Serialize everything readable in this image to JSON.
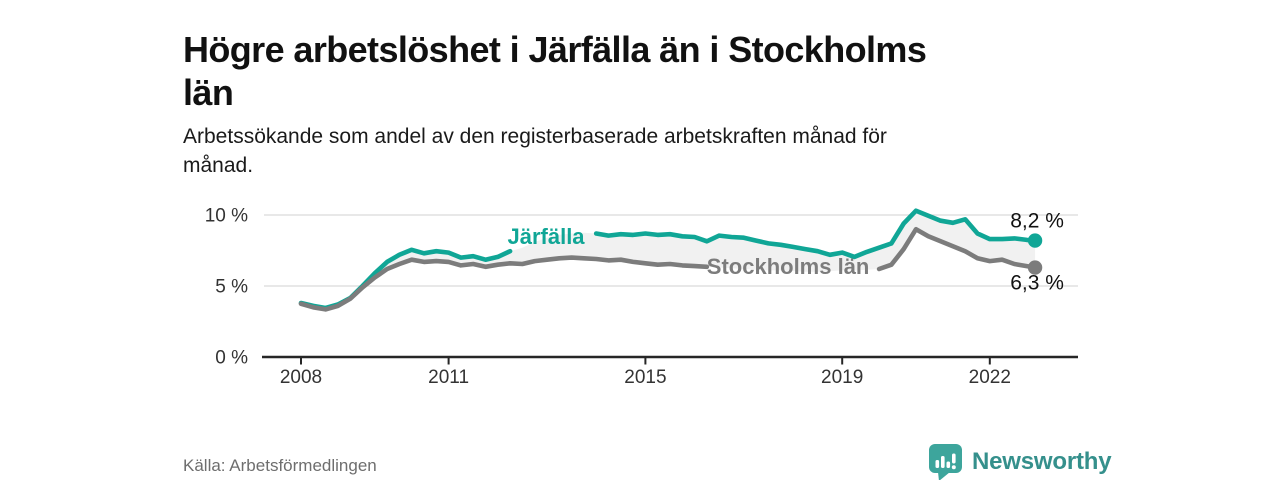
{
  "header": {
    "title_lines": [
      "Högre arbetslöshet i Järfälla än i Stockholms",
      "län"
    ],
    "subtitle_lines": [
      "Arbetssökande som andel av den registerbaserade arbetskraften månad för",
      "månad."
    ]
  },
  "footer": {
    "source": "Källa: Arbetsförmedlingen",
    "brand": "Newsworthy",
    "brand_icon": "bar-chart-speech-bubble-icon"
  },
  "colors": {
    "accent_teal": "#10a696",
    "line_gray": "#7c7c7c",
    "band_fill": "#f1f1f1",
    "grid": "#d9d9d9",
    "axis": "#262626",
    "brand_teal": "#35908c",
    "brand_icon_teal": "#3da59c"
  },
  "chart_data": {
    "type": "line",
    "title": "Högre arbetslöshet i Järfälla än i Stockholms län",
    "subtitle": "Arbetssökande som andel av den registerbaserade arbetskraften månad för månad.",
    "unit": "%",
    "grid": "horizontal",
    "legend_position": "inline-labels",
    "x_start": 2008.0,
    "x_step_years": 0.25,
    "x_last": 2022.92,
    "x_ticks": [
      2008,
      2011,
      2015,
      2019,
      2022
    ],
    "y_ticks": [
      {
        "value": 0,
        "label": "0 %"
      },
      {
        "value": 5,
        "label": "5 %"
      },
      {
        "value": 10,
        "label": "10 %"
      }
    ],
    "ylim": [
      0,
      11.4
    ],
    "band_fill_between_series": "#f1f1f1",
    "series": [
      {
        "name": "Järfälla",
        "color": "#10a696",
        "end_value": 8.2,
        "end_label": "8,2 %",
        "end_label_dy": -13,
        "inline_label": {
          "text": "Järfälla",
          "x": 2012.98,
          "y": 7.95
        },
        "label_gap_x": [
          2012.3,
          2013.8
        ],
        "values": [
          3.8,
          3.6,
          3.45,
          3.7,
          4.15,
          5.0,
          5.9,
          6.7,
          7.2,
          7.55,
          7.3,
          7.45,
          7.35,
          7.0,
          7.1,
          6.85,
          7.05,
          7.45,
          7.7,
          8.1,
          8.4,
          8.6,
          8.7,
          8.75,
          8.7,
          8.55,
          8.65,
          8.6,
          8.7,
          8.6,
          8.65,
          8.5,
          8.45,
          8.15,
          8.55,
          8.45,
          8.4,
          8.2,
          8.0,
          7.9,
          7.75,
          7.6,
          7.45,
          7.2,
          7.35,
          7.05,
          7.4,
          7.7,
          8.0,
          9.4,
          10.3,
          9.95,
          9.6,
          9.45,
          9.7,
          8.7,
          8.3,
          8.3,
          8.35,
          8.25,
          8.2
        ]
      },
      {
        "name": "Stockholms län",
        "color": "#7c7c7c",
        "end_value": 6.3,
        "end_label": "6,3 %",
        "end_label_dy": 22,
        "inline_label": {
          "text": "Stockholms län",
          "x": 2017.9,
          "y": 5.85
        },
        "label_gap_x": [
          2016.3,
          2019.55
        ],
        "values": [
          3.75,
          3.5,
          3.35,
          3.6,
          4.1,
          4.9,
          5.6,
          6.2,
          6.55,
          6.85,
          6.7,
          6.75,
          6.7,
          6.45,
          6.55,
          6.35,
          6.5,
          6.6,
          6.55,
          6.75,
          6.85,
          6.95,
          7.0,
          6.95,
          6.9,
          6.8,
          6.85,
          6.7,
          6.6,
          6.5,
          6.55,
          6.45,
          6.4,
          6.35,
          6.3,
          6.25,
          6.2,
          6.15,
          6.1,
          6.1,
          6.05,
          6.0,
          6.0,
          6.05,
          6.1,
          6.1,
          6.15,
          6.2,
          6.5,
          7.6,
          9.0,
          8.5,
          8.15,
          7.8,
          7.45,
          6.95,
          6.75,
          6.85,
          6.55,
          6.4,
          6.3
        ]
      }
    ]
  }
}
